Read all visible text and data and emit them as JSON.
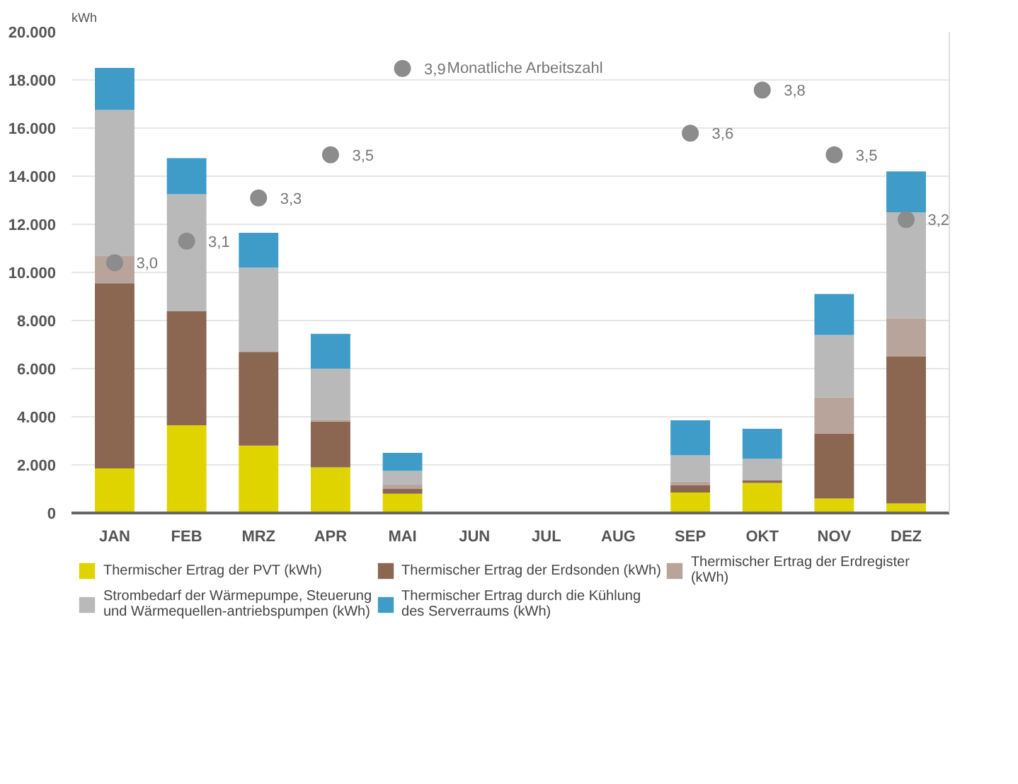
{
  "chart_data": {
    "type": "bar",
    "stacked": true,
    "ylabel": "kWh",
    "categories": [
      "JAN",
      "FEB",
      "MRZ",
      "APR",
      "MAI",
      "JUN",
      "JUL",
      "AUG",
      "SEP",
      "OKT",
      "NOV",
      "DEZ"
    ],
    "series": [
      {
        "name": "Thermischer Ertrag der PVT (kWh)",
        "color": "#e0d400",
        "values": [
          1850,
          3650,
          2800,
          1900,
          800,
          null,
          null,
          null,
          850,
          1250,
          600,
          400
        ]
      },
      {
        "name": "Thermischer Ertrag der Erdsonden (kWh)",
        "color": "#8b6651",
        "values": [
          7700,
          4750,
          3900,
          1900,
          200,
          null,
          null,
          null,
          300,
          100,
          2700,
          6100
        ]
      },
      {
        "name": "Thermischer Ertrag der Erdregister (kWh)",
        "color": "#b8a49b",
        "values": [
          1150,
          0,
          0,
          100,
          200,
          null,
          null,
          null,
          150,
          0,
          1500,
          1600
        ]
      },
      {
        "name": "Strombedarf der Wärmepumpe, Steuerung und Wärmequellen-antriebspumpen (kWh)",
        "color": "#b9b9b9",
        "values": [
          6050,
          4850,
          3500,
          2100,
          550,
          null,
          null,
          null,
          1100,
          900,
          2600,
          4400
        ]
      },
      {
        "name": "Thermischer Ertrag durch die Kühlung des Serverraums (kWh)",
        "color": "#3f9cc8",
        "values": [
          1750,
          1500,
          1450,
          1450,
          750,
          null,
          null,
          null,
          1450,
          1250,
          1700,
          1700
        ]
      },
      {
        "name": "Monatliche Arbeitszahl",
        "type": "scatter",
        "axis": "y2",
        "color": "#8c8c8c",
        "values": [
          3.0,
          3.1,
          3.3,
          3.5,
          3.9,
          null,
          null,
          null,
          3.6,
          3.8,
          3.5,
          3.2
        ],
        "value_labels": [
          "3,0",
          "3,1",
          "3,3",
          "3,5",
          "3,9",
          null,
          null,
          null,
          "3,6",
          "3,8",
          "3,5",
          "3,2"
        ]
      }
    ],
    "ylim": [
      0,
      20000
    ],
    "yticks": [
      0,
      {
        "value": 2000,
        "label": "2.000"
      },
      {
        "value": 4000,
        "label": "4.000"
      },
      {
        "value": 6000,
        "label": "6.000"
      },
      {
        "value": 8000,
        "label": "8.000"
      },
      {
        "value": 10000,
        "label": "10.000"
      },
      {
        "value": 12000,
        "label": "12.000"
      },
      {
        "value": 14000,
        "label": "14.000"
      },
      {
        "value": 16000,
        "label": "16.000"
      },
      {
        "value": 18000,
        "label": "18.000"
      },
      {
        "value": 20000,
        "label": "20.000"
      }
    ],
    "y2lim": [
      1.84,
      4.07
    ],
    "grid": "y",
    "legend": "bottom",
    "marker": "circle"
  }
}
